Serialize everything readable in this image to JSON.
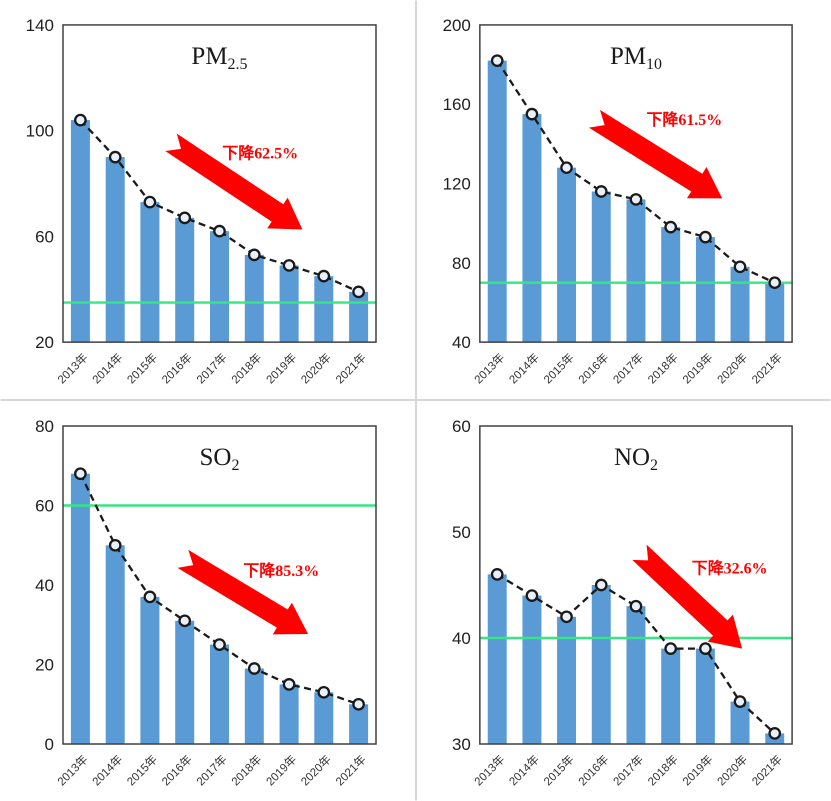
{
  "page": {
    "background": "#ffffff",
    "divider_color": "#d6d6d6",
    "layout": "2x2 grid of charts"
  },
  "style": {
    "bar_color": "#5B9BD5",
    "line_color": "#1a1a1a",
    "marker_fill": "#e9f0f8",
    "marker_stroke": "#1a1a1a",
    "ref_line_color": "#34e783",
    "arrow_color": "#ff0000",
    "annotation_color": "#ff0000",
    "axis_text_color": "#1f1f1f",
    "x_label_color": "#333333",
    "border_color": "#404040",
    "title_color": "#1a1a1a"
  },
  "chart_data": [
    {
      "id": "pm25",
      "type": "bar",
      "title": {
        "main": "PM",
        "sub": "2.5"
      },
      "categories": [
        "2013年",
        "2014年",
        "2015年",
        "2016年",
        "2017年",
        "2018年",
        "2019年",
        "2020年",
        "2021年"
      ],
      "values": [
        104,
        90,
        73,
        67,
        62,
        53,
        49,
        45,
        39
      ],
      "ylim": [
        20,
        140
      ],
      "yticks": [
        140,
        100,
        60,
        20
      ],
      "ref_line": 35,
      "annotation": {
        "label": "下降62.5%",
        "x": 0.63,
        "y": 0.405
      },
      "arrow": {
        "x1": 0.345,
        "y1": 0.37,
        "x2": 0.765,
        "y2": 0.645
      },
      "overlay": "dashed line with circle markers on same values; green horizontal reference line"
    },
    {
      "id": "pm10",
      "type": "bar",
      "title": {
        "main": "PM",
        "sub": "10"
      },
      "categories": [
        "2013年",
        "2014年",
        "2015年",
        "2016年",
        "2017年",
        "2018年",
        "2019年",
        "2020年",
        "2021年"
      ],
      "values": [
        182,
        155,
        128,
        116,
        112,
        98,
        93,
        78,
        70
      ],
      "ylim": [
        40,
        200
      ],
      "yticks": [
        200,
        160,
        120,
        80,
        40
      ],
      "ref_line": 70,
      "annotation": {
        "label": "下降61.5%",
        "x": 0.655,
        "y": 0.3
      },
      "arrow": {
        "x1": 0.367,
        "y1": 0.296,
        "x2": 0.776,
        "y2": 0.547
      },
      "overlay": "dashed line with circle markers on same values; green horizontal reference line"
    },
    {
      "id": "so2",
      "type": "bar",
      "title": {
        "main": "SO",
        "sub": "2"
      },
      "categories": [
        "2013年",
        "2014年",
        "2015年",
        "2016年",
        "2017年",
        "2018年",
        "2019年",
        "2020年",
        "2021年"
      ],
      "values": [
        68,
        50,
        37,
        31,
        25,
        19,
        15,
        13,
        10
      ],
      "ylim": [
        0,
        80
      ],
      "yticks": [
        80,
        60,
        40,
        20,
        0
      ],
      "ref_line": 60,
      "annotation": {
        "label": "下降85.3%",
        "x": 0.697,
        "y": 0.456
      },
      "arrow": {
        "x1": 0.383,
        "y1": 0.418,
        "x2": 0.783,
        "y2": 0.654
      },
      "overlay": "dashed line with circle markers on same values; green horizontal reference line"
    },
    {
      "id": "no2",
      "type": "bar",
      "title": {
        "main": "NO",
        "sub": "2"
      },
      "categories": [
        "2013年",
        "2014年",
        "2015年",
        "2016年",
        "2017年",
        "2018年",
        "2019年",
        "2020年",
        "2021年"
      ],
      "values": [
        46,
        44,
        42,
        45,
        43,
        39,
        39,
        34,
        31
      ],
      "ylim": [
        30,
        60
      ],
      "yticks": [
        60,
        50,
        40,
        30
      ],
      "ref_line": 40,
      "annotation": {
        "label": "下降32.6%",
        "x": 0.8,
        "y": 0.448
      },
      "arrow": {
        "x1": 0.511,
        "y1": 0.397,
        "x2": 0.84,
        "y2": 0.7
      },
      "overlay": "dashed line with circle markers on same values; green horizontal reference line"
    }
  ]
}
